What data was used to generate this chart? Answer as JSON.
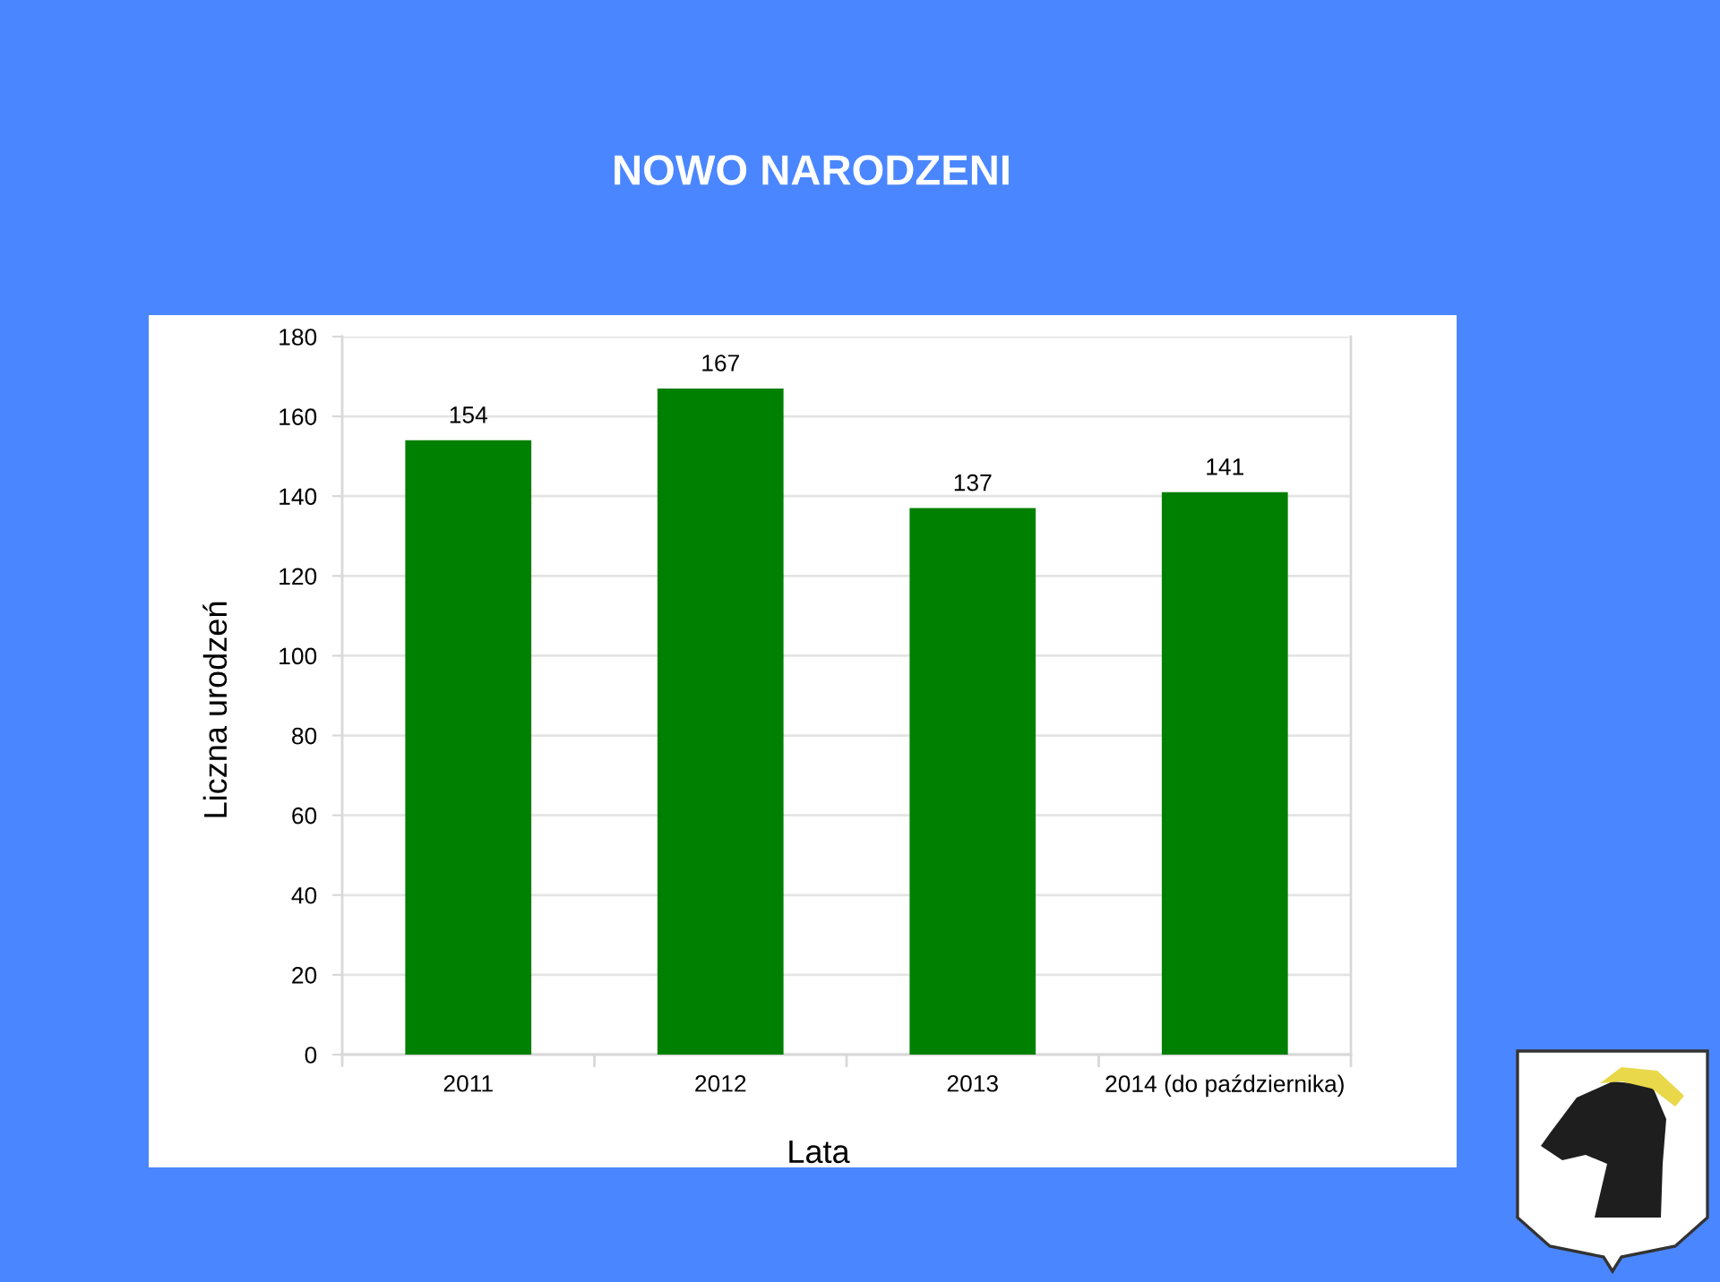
{
  "chart_data": {
    "type": "bar",
    "title": "NOWO NARODZENI",
    "xlabel": "Lata",
    "ylabel": "Liczna urodzeń",
    "categories": [
      "2011",
      "2012",
      "2013",
      "2014 (do października)"
    ],
    "values": [
      154,
      167,
      137,
      141
    ],
    "color": "#008000",
    "ylim": [
      0,
      180
    ],
    "yticks": [
      0,
      20,
      40,
      60,
      80,
      100,
      120,
      140,
      160,
      180
    ],
    "grid": "y",
    "data_labels": true
  }
}
